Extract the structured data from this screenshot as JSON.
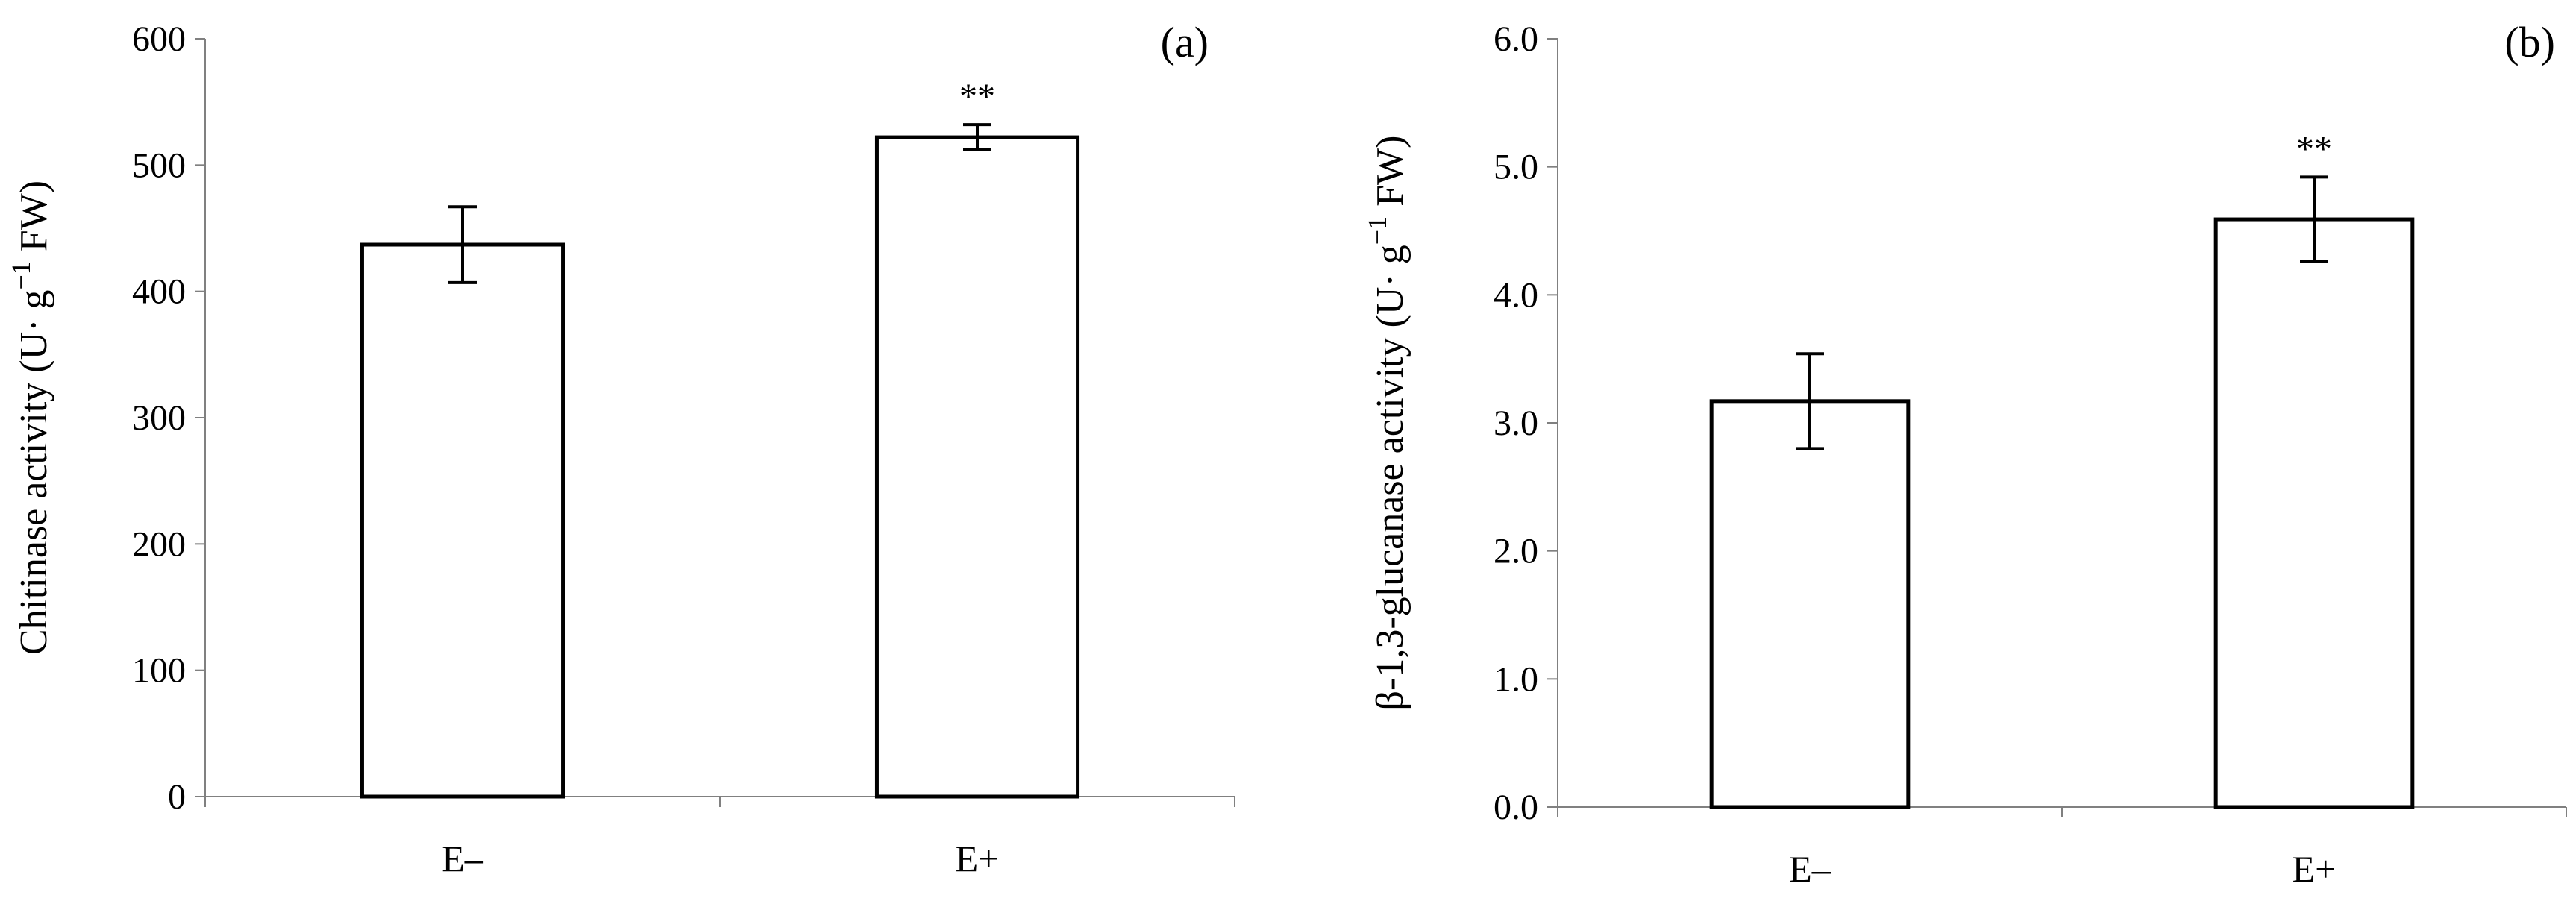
{
  "chart_data": [
    {
      "panel": "(a)",
      "type": "bar",
      "categories": [
        "E–",
        "E+"
      ],
      "values": [
        437,
        522
      ],
      "errors": [
        30,
        10
      ],
      "annotations": [
        "",
        "**"
      ],
      "ylabel": "Chitinase activity (U· g",
      "ylabel_sup": "−1",
      "ylabel_tail": " FW)",
      "ylim": [
        0,
        600
      ],
      "yticks": [
        0,
        100,
        200,
        300,
        400,
        500,
        600
      ],
      "ytick_labels": [
        "0",
        "100",
        "200",
        "300",
        "400",
        "500",
        "600"
      ],
      "grid": false,
      "legend": "none"
    },
    {
      "panel": "(b)",
      "type": "bar",
      "categories": [
        "E–",
        "E+"
      ],
      "values": [
        3.17,
        4.59
      ],
      "errors": [
        0.37,
        0.33
      ],
      "annotations": [
        "",
        "**"
      ],
      "ylabel": "β-1,3-glucanase activity (U· g",
      "ylabel_sup": "−1",
      "ylabel_tail": " FW)",
      "ylim": [
        0,
        6
      ],
      "yticks": [
        0,
        1,
        2,
        3,
        4,
        5,
        6
      ],
      "ytick_labels": [
        "0.0",
        "1.0",
        "2.0",
        "3.0",
        "4.0",
        "5.0",
        "6.0"
      ],
      "grid": false,
      "legend": "none"
    }
  ]
}
